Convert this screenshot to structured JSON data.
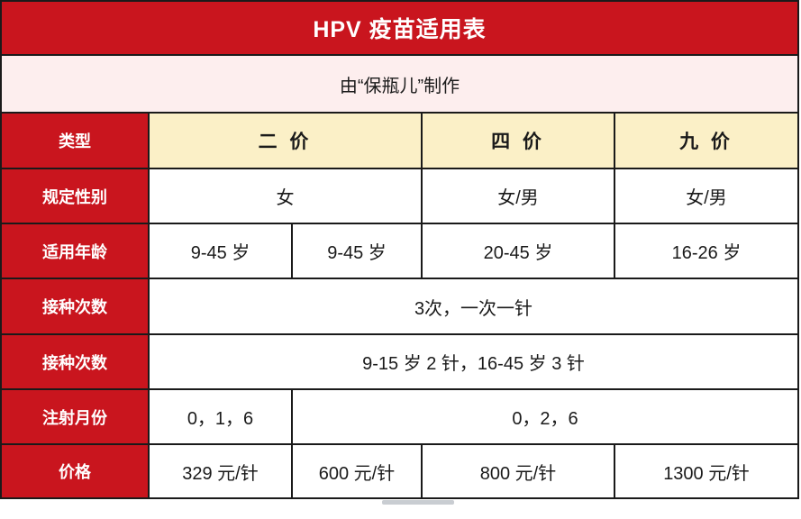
{
  "title": "HPV 疫苗适用表",
  "subtitle": "由“保瓶儿”制作",
  "colors": {
    "brand_red": "#c9151e",
    "subtitle_bg": "#fdeeee",
    "header_bg": "#fbf0c7",
    "border": "#1a1a1a",
    "text": "#1a1a1a",
    "text_on_red": "#ffffff"
  },
  "header": {
    "label": "类型",
    "bivalent": "二 价",
    "quadrivalent": "四 价",
    "nonavalent": "九 价"
  },
  "rows": {
    "gender": {
      "label": "规定性别",
      "bivalent": "女",
      "quadrivalent": "女/男",
      "nonavalent": "女/男"
    },
    "age": {
      "label": "适用年龄",
      "c1": "9-45 岁",
      "c2": "9-45 岁",
      "c3": "20-45 岁",
      "c4": "16-26 岁"
    },
    "doses1": {
      "label": "接种次数",
      "value": "3次，一次一针"
    },
    "doses2": {
      "label": "接种次数",
      "value": "9-15 岁 2 针，16-45 岁 3 针"
    },
    "months": {
      "label": "注射月份",
      "c1": "0，1，6",
      "rest": "0，2，6"
    },
    "price": {
      "label": "价格",
      "c1": "329 元/针",
      "c2": "600 元/针",
      "c3": "800 元/针",
      "c4": "1300 元/针"
    }
  },
  "chart_data": {
    "type": "table",
    "title": "HPV 疫苗适用表",
    "subtitle": "由“保瓶儿”制作",
    "columns": [
      "类型",
      "二 价",
      "二 价",
      "四 价",
      "九 价"
    ],
    "rows": [
      [
        "规定性别",
        "女",
        "女",
        "女/男",
        "女/男"
      ],
      [
        "适用年龄",
        "9-45 岁",
        "9-45 岁",
        "20-45 岁",
        "16-26 岁"
      ],
      [
        "接种次数",
        "3次，一次一针",
        "3次，一次一针",
        "3次，一次一针",
        "3次，一次一针"
      ],
      [
        "接种次数",
        "9-15 岁 2 针，16-45 岁 3 针",
        "9-15 岁 2 针，16-45 岁 3 针",
        "9-15 岁 2 针，16-45 岁 3 针",
        "9-15 岁 2 针，16-45 岁 3 针"
      ],
      [
        "注射月份",
        "0，1，6",
        "0，2，6",
        "0，2，6",
        "0，2，6"
      ],
      [
        "价格",
        "329 元/针",
        "600 元/针",
        "800 元/针",
        "1300 元/针"
      ]
    ]
  }
}
